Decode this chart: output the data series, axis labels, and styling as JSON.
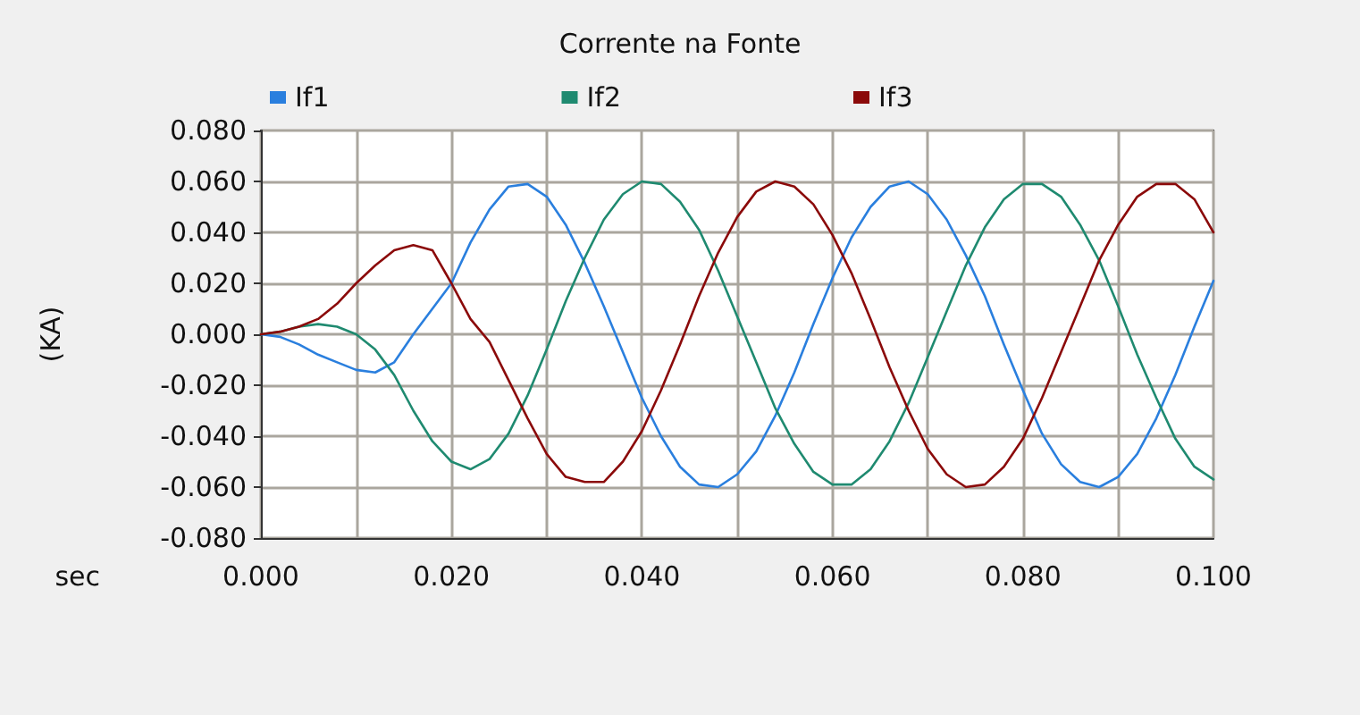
{
  "chart_data": {
    "type": "line",
    "title": "Corrente na Fonte",
    "xlabel": "sec",
    "ylabel": "(KA)",
    "x": [
      0,
      0.002,
      0.004,
      0.006,
      0.008,
      0.01,
      0.012,
      0.014,
      0.016,
      0.018,
      0.02,
      0.022,
      0.024,
      0.026,
      0.028,
      0.03,
      0.032,
      0.034,
      0.036,
      0.038,
      0.04,
      0.042,
      0.044,
      0.046,
      0.048,
      0.05,
      0.052,
      0.054,
      0.056,
      0.058,
      0.06,
      0.062,
      0.064,
      0.066,
      0.068,
      0.07,
      0.072,
      0.074,
      0.076,
      0.078,
      0.08,
      0.082,
      0.084,
      0.086,
      0.088,
      0.09,
      0.092,
      0.094,
      0.096,
      0.098,
      0.1
    ],
    "series": [
      {
        "name": "If1",
        "color": "#2a7fde",
        "values": [
          0,
          -0.001,
          -0.004,
          -0.008,
          -0.011,
          -0.014,
          -0.015,
          -0.011,
          0.0,
          0.01,
          0.02,
          0.036,
          0.049,
          0.058,
          0.059,
          0.054,
          0.043,
          0.028,
          0.011,
          -0.007,
          -0.025,
          -0.04,
          -0.052,
          -0.059,
          -0.06,
          -0.055,
          -0.046,
          -0.032,
          -0.015,
          0.004,
          0.022,
          0.038,
          0.05,
          0.058,
          0.06,
          0.055,
          0.045,
          0.031,
          0.015,
          -0.004,
          -0.022,
          -0.039,
          -0.051,
          -0.058,
          -0.06,
          -0.056,
          -0.047,
          -0.033,
          -0.016,
          0.003,
          0.021
        ]
      },
      {
        "name": "If2",
        "color": "#1f8a70",
        "values": [
          0,
          0.001,
          0.003,
          0.004,
          0.003,
          0.0,
          -0.006,
          -0.016,
          -0.03,
          -0.042,
          -0.05,
          -0.053,
          -0.049,
          -0.039,
          -0.024,
          -0.006,
          0.013,
          0.03,
          0.045,
          0.055,
          0.06,
          0.059,
          0.052,
          0.041,
          0.025,
          0.007,
          -0.011,
          -0.029,
          -0.043,
          -0.054,
          -0.059,
          -0.059,
          -0.053,
          -0.042,
          -0.027,
          -0.009,
          0.009,
          0.027,
          0.042,
          0.053,
          0.059,
          0.059,
          0.054,
          0.043,
          0.029,
          0.011,
          -0.008,
          -0.025,
          -0.041,
          -0.052,
          -0.057
        ]
      },
      {
        "name": "If3",
        "color": "#8b0a0a",
        "values": [
          0,
          0.001,
          0.003,
          0.006,
          0.012,
          0.02,
          0.027,
          0.033,
          0.035,
          0.033,
          0.02,
          0.006,
          -0.003,
          -0.018,
          -0.033,
          -0.047,
          -0.056,
          -0.058,
          -0.058,
          -0.05,
          -0.038,
          -0.022,
          -0.004,
          0.015,
          0.032,
          0.046,
          0.056,
          0.06,
          0.058,
          0.051,
          0.039,
          0.024,
          0.006,
          -0.013,
          -0.03,
          -0.045,
          -0.055,
          -0.06,
          -0.059,
          -0.052,
          -0.041,
          -0.025,
          -0.007,
          0.011,
          0.029,
          0.043,
          0.054,
          0.059,
          0.059,
          0.053,
          0.04
        ]
      }
    ],
    "xlim": [
      0,
      0.1
    ],
    "xticks": [
      {
        "value": 0,
        "label": "0.000"
      },
      {
        "value": 0.01,
        "label": null
      },
      {
        "value": 0.02,
        "label": "0.020"
      },
      {
        "value": 0.03,
        "label": null
      },
      {
        "value": 0.04,
        "label": "0.040"
      },
      {
        "value": 0.05,
        "label": null
      },
      {
        "value": 0.06,
        "label": "0.060"
      },
      {
        "value": 0.07,
        "label": null
      },
      {
        "value": 0.08,
        "label": "0.080"
      },
      {
        "value": 0.09,
        "label": null
      },
      {
        "value": 0.1,
        "label": "0.100"
      }
    ],
    "ylim": [
      -0.08,
      0.08
    ],
    "yticks": [
      {
        "value": -0.08,
        "label": "-0.080"
      },
      {
        "value": -0.06,
        "label": "-0.060"
      },
      {
        "value": -0.04,
        "label": "-0.040"
      },
      {
        "value": -0.02,
        "label": "-0.020"
      },
      {
        "value": 0,
        "label": "0.000"
      },
      {
        "value": 0.02,
        "label": "0.020"
      },
      {
        "value": 0.04,
        "label": "0.040"
      },
      {
        "value": 0.06,
        "label": "0.060"
      },
      {
        "value": 0.08,
        "label": "0.080"
      }
    ],
    "grid": true,
    "legend": "top",
    "marker": "none",
    "line_style": "solid"
  }
}
